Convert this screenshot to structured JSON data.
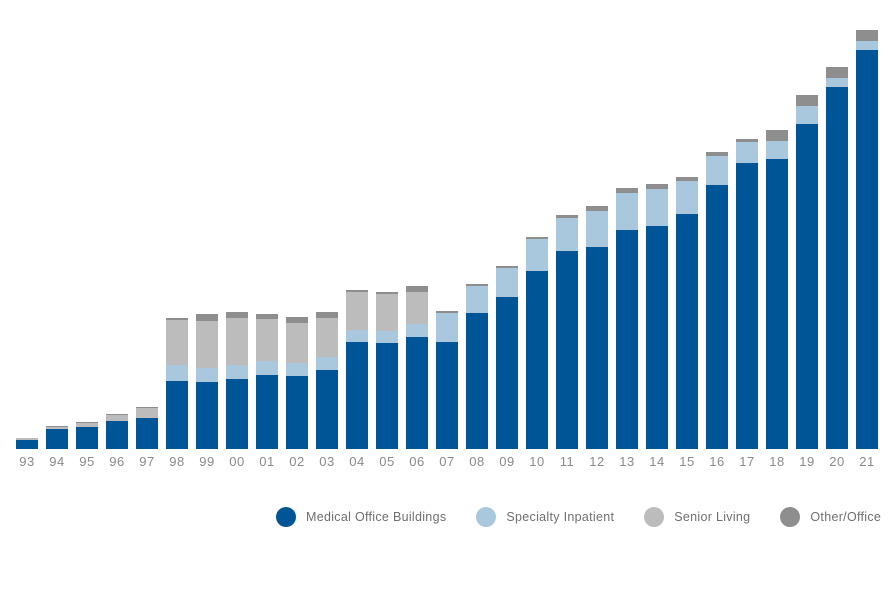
{
  "chart_data": {
    "type": "bar",
    "stacked": true,
    "categories": [
      "93",
      "94",
      "95",
      "96",
      "97",
      "98",
      "99",
      "00",
      "01",
      "02",
      "03",
      "04",
      "05",
      "06",
      "07",
      "08",
      "09",
      "10",
      "11",
      "12",
      "13",
      "14",
      "15",
      "16",
      "17",
      "18",
      "19",
      "20",
      "21"
    ],
    "series": [
      {
        "name": "Medical Office Buildings",
        "color": "#005596",
        "values": [
          9,
          20,
          22,
          28,
          31,
          68,
          67,
          70,
          74,
          73,
          79,
          107,
          106,
          112,
          107,
          136,
          152,
          178,
          198,
          202,
          219,
          223,
          235,
          264,
          286,
          290,
          325,
          362,
          399
        ]
      },
      {
        "name": "Specialty Inpatient",
        "color": "#a9c7dd",
        "values": [
          0,
          0,
          0,
          0,
          0,
          16,
          14,
          14,
          14,
          13,
          13,
          12,
          12,
          13,
          29,
          27,
          29,
          32,
          33,
          36,
          37,
          37,
          33,
          29,
          21,
          18,
          18,
          9,
          9
        ]
      },
      {
        "name": "Senior Living",
        "color": "#bcbcbd",
        "values": [
          2,
          2,
          4,
          6,
          10,
          45,
          47,
          47,
          42,
          40,
          39,
          38,
          37,
          32,
          0,
          0,
          0,
          0,
          0,
          0,
          0,
          0,
          0,
          0,
          0,
          0,
          0,
          0,
          0
        ]
      },
      {
        "name": "Other/Office",
        "color": "#8e8e8f",
        "values": [
          0,
          1,
          1,
          1,
          1,
          2,
          7,
          6,
          5,
          6,
          6,
          2,
          2,
          6,
          2,
          2,
          2,
          2,
          3,
          5,
          5,
          5,
          4,
          4,
          3,
          11,
          11,
          11,
          11
        ]
      }
    ],
    "ylim": [
      0,
      420
    ],
    "grid": false,
    "legend_position": "bottom"
  }
}
